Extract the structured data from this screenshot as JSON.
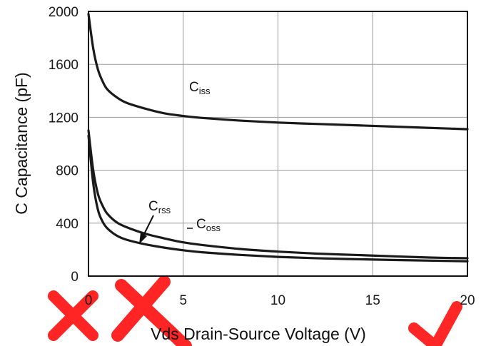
{
  "chart_data": {
    "type": "line",
    "title": "",
    "xlabel": "Vds Drain-Source Voltage (V)",
    "ylabel": "C Capacitance (pF)",
    "xlim": [
      0,
      20
    ],
    "ylim": [
      0,
      2000
    ],
    "xticks": [
      0,
      5,
      10,
      15,
      20
    ],
    "yticks": [
      0,
      400,
      800,
      1200,
      1600,
      2000
    ],
    "grid": true,
    "legend": "none",
    "series": [
      {
        "name": "Ciss",
        "label_main": "C",
        "label_sub": "iss",
        "x": [
          0,
          0.25,
          0.5,
          0.75,
          1,
          1.5,
          2,
          3,
          4,
          5,
          6,
          8,
          10,
          12,
          14,
          16,
          18,
          20
        ],
        "values": [
          1980,
          1720,
          1560,
          1470,
          1410,
          1350,
          1310,
          1265,
          1230,
          1210,
          1195,
          1175,
          1160,
          1150,
          1140,
          1130,
          1120,
          1110
        ]
      },
      {
        "name": "Coss",
        "label_main": "C",
        "label_sub": "oss",
        "x": [
          0,
          0.25,
          0.5,
          0.75,
          1,
          1.5,
          2,
          3,
          4,
          5,
          6,
          8,
          10,
          12,
          14,
          16,
          18,
          20
        ],
        "values": [
          1100,
          800,
          620,
          530,
          470,
          405,
          370,
          320,
          285,
          255,
          235,
          205,
          185,
          170,
          160,
          150,
          140,
          135
        ]
      },
      {
        "name": "Crss",
        "label_main": "C",
        "label_sub": "rss",
        "x": [
          0,
          0.25,
          0.5,
          0.75,
          1,
          1.5,
          2,
          3,
          4,
          5,
          6,
          8,
          10,
          12,
          14,
          16,
          18,
          20
        ],
        "values": [
          1060,
          700,
          500,
          410,
          360,
          305,
          275,
          240,
          215,
          195,
          180,
          160,
          145,
          135,
          128,
          122,
          117,
          112
        ]
      }
    ],
    "colors": {
      "curves": "#1a1a1a",
      "grid": "#9a9a9a",
      "frame": "#111111",
      "watermark": "#ff0000"
    }
  }
}
